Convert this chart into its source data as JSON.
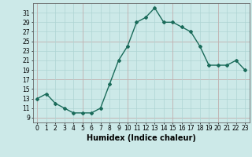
{
  "x": [
    0,
    1,
    2,
    3,
    4,
    5,
    6,
    7,
    8,
    9,
    10,
    11,
    12,
    13,
    14,
    15,
    16,
    17,
    18,
    19,
    20,
    21,
    22,
    23
  ],
  "y": [
    13,
    14,
    12,
    11,
    10,
    10,
    10,
    11,
    16,
    21,
    24,
    29,
    30,
    32,
    29,
    29,
    28,
    27,
    24,
    20,
    20,
    20,
    21,
    19
  ],
  "line_color": "#1a6b5a",
  "marker": "D",
  "marker_size": 2.0,
  "bg_color": "#cce9e8",
  "grid_color_main": "#aed4d3",
  "grid_color_pink": "#c8a8a8",
  "xlabel": "Humidex (Indice chaleur)",
  "xlabel_fontsize": 7,
  "ylabel_ticks": [
    9,
    11,
    13,
    15,
    17,
    19,
    21,
    23,
    25,
    27,
    29,
    31
  ],
  "pink_yticks": [
    9,
    17,
    25
  ],
  "pink_xticks": [
    0,
    5,
    10,
    15,
    20
  ],
  "ylim": [
    8,
    33
  ],
  "xlim": [
    -0.5,
    23.5
  ],
  "tick_fontsize": 5.5,
  "linewidth": 1.0
}
